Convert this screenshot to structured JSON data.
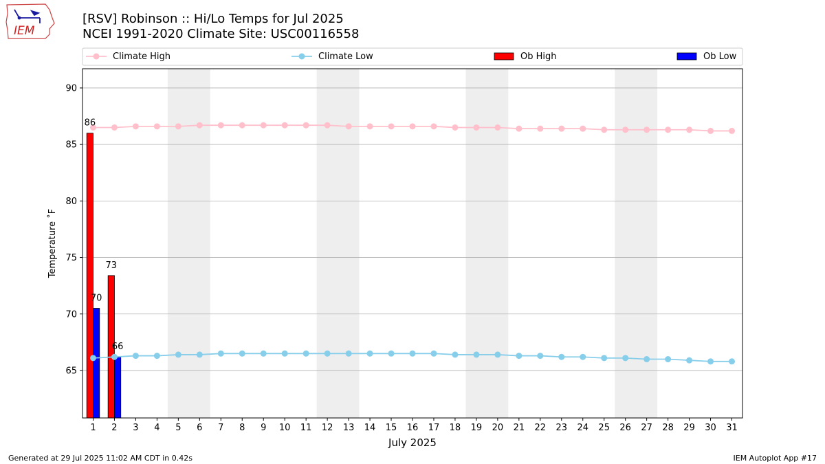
{
  "header": {
    "title_line1": "[RSV] Robinson :: Hi/Lo Temps for Jul 2025",
    "title_line2": "NCEI 1991-2020 Climate Site: USC00116558"
  },
  "logo": {
    "text": "IEM",
    "icon": "iowa-state-outline-logo"
  },
  "footer": {
    "left": "Generated at 29 Jul 2025 11:02 AM CDT in 0.42s",
    "right": "IEM Autoplot App #17"
  },
  "colors": {
    "climate_high": "#ffc0cb",
    "climate_low": "#87ceeb",
    "ob_high": "#ff0000",
    "ob_low": "#0000ff",
    "weekend_shade": "#eeeeee",
    "grid": "#b0b0b0"
  },
  "chart_data": {
    "type": "bar",
    "xlabel": "July 2025",
    "ylabel": "Temperature ˚F",
    "xlim": [
      0.5,
      31.5
    ],
    "ylim": [
      60.8,
      91.7
    ],
    "yticks": [
      65,
      70,
      75,
      80,
      85,
      90
    ],
    "x": [
      1,
      2,
      3,
      4,
      5,
      6,
      7,
      8,
      9,
      10,
      11,
      12,
      13,
      14,
      15,
      16,
      17,
      18,
      19,
      20,
      21,
      22,
      23,
      24,
      25,
      26,
      27,
      28,
      29,
      30,
      31
    ],
    "grid": "horizontal",
    "legend_position": "top",
    "shaded_weekends": [
      [
        5,
        6
      ],
      [
        12,
        13
      ],
      [
        19,
        20
      ],
      [
        26,
        27
      ]
    ],
    "series": [
      {
        "name": "Climate High",
        "kind": "line",
        "values": [
          86.5,
          86.5,
          86.6,
          86.6,
          86.6,
          86.7,
          86.7,
          86.7,
          86.7,
          86.7,
          86.7,
          86.7,
          86.6,
          86.6,
          86.6,
          86.6,
          86.6,
          86.5,
          86.5,
          86.5,
          86.4,
          86.4,
          86.4,
          86.4,
          86.3,
          86.3,
          86.3,
          86.3,
          86.3,
          86.2,
          86.2
        ]
      },
      {
        "name": "Climate Low",
        "kind": "line",
        "values": [
          66.1,
          66.2,
          66.3,
          66.3,
          66.4,
          66.4,
          66.5,
          66.5,
          66.5,
          66.5,
          66.5,
          66.5,
          66.5,
          66.5,
          66.5,
          66.5,
          66.5,
          66.4,
          66.4,
          66.4,
          66.3,
          66.3,
          66.2,
          66.2,
          66.1,
          66.1,
          66.0,
          66.0,
          65.9,
          65.8,
          65.8
        ]
      },
      {
        "name": "Ob High",
        "kind": "bar",
        "x": [
          1,
          2
        ],
        "values": [
          86,
          73.4
        ],
        "labels": [
          "86",
          "73"
        ]
      },
      {
        "name": "Ob Low",
        "kind": "bar",
        "x": [
          1,
          2
        ],
        "values": [
          70.5,
          66.2
        ],
        "labels": [
          "70",
          "66"
        ]
      }
    ]
  }
}
